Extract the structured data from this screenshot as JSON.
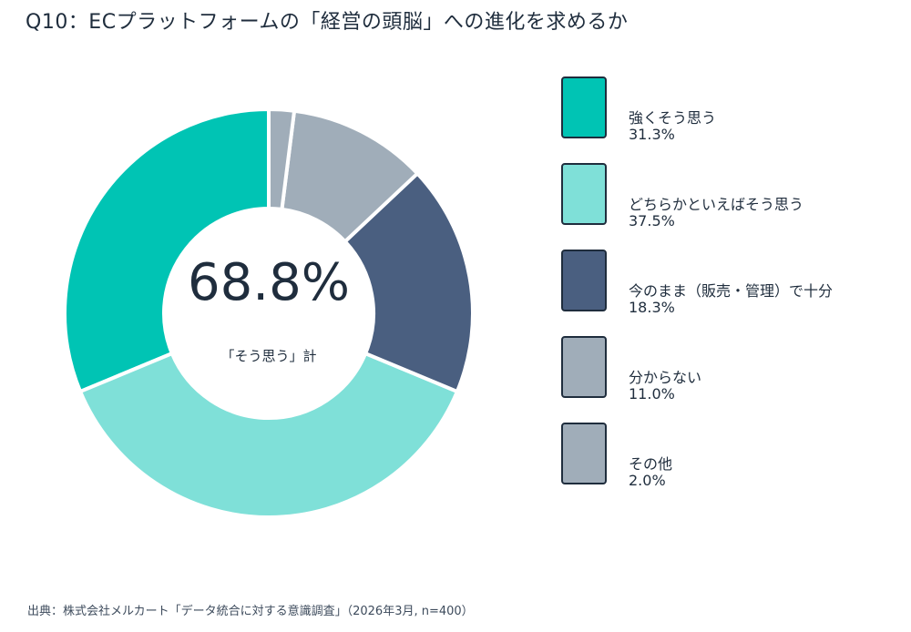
{
  "title": "Q10：ECプラットフォームの「経営の頭脳」への進化を求めるか",
  "center": {
    "value": "68.8%",
    "label": "「そう思う」計"
  },
  "source": "出典：株式会社メルカート「データ統合に対する意識調査」（2026年3月, n=400）",
  "chart_data": {
    "type": "pie",
    "donut": true,
    "categories": [
      "強くそう思う",
      "どちらかといえばそう思う",
      "今のまま（販売・管理）で十分",
      "分からない",
      "その他"
    ],
    "values": [
      31.3,
      37.5,
      18.3,
      11.0,
      2.0
    ],
    "value_labels": [
      "31.3%",
      "37.5%",
      "18.3%",
      "11.0%",
      "2.0%"
    ],
    "colors": [
      "#00c4b4",
      "#7fe0d8",
      "#4a5f80",
      "#a0adb9",
      "#a0adb9"
    ],
    "legend_position": "right",
    "start": "top",
    "direction": "counterclockwise"
  }
}
